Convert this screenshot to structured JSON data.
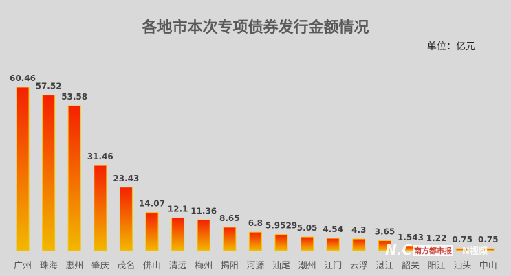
{
  "chart_data": {
    "type": "bar",
    "title": "各地市本次专项债券发行金额情况",
    "unit_label": "单位：亿元",
    "categories": [
      "广州",
      "珠海",
      "惠州",
      "肇庆",
      "茂名",
      "佛山",
      "清远",
      "梅州",
      "揭阳",
      "河源",
      "汕尾",
      "潮州",
      "江门",
      "云浮",
      "湛江",
      "韶关",
      "阳江",
      "汕头",
      "中山"
    ],
    "values": [
      60.46,
      57.52,
      53.58,
      31.46,
      23.43,
      14.07,
      12.1,
      11.36,
      8.65,
      6.8,
      5.9529,
      5.05,
      4.54,
      4.3,
      3.65,
      1.543,
      1.22,
      0.75,
      0.75
    ],
    "value_labels": [
      "60.46",
      "57.52",
      "53.58",
      "31.46",
      "23.43",
      "14.07",
      "12.1",
      "11.36",
      "8.65",
      "6.8",
      "5.9529",
      "5.05",
      "4.54",
      "4.3",
      "3.65",
      "1.543",
      "1.22",
      "0.75",
      "0.75"
    ],
    "ylim": [
      0,
      60.46
    ],
    "grid": false,
    "legend": "none",
    "colors": {
      "bar_top": "#f52000",
      "bar_bottom": "#f2b800",
      "bar_border": "#f5c400",
      "label": "#404040",
      "tick": "#555555"
    }
  },
  "watermark": {
    "logo1": "N.C.",
    "logo2": "南方都市报",
    "logo3": "N视频"
  }
}
